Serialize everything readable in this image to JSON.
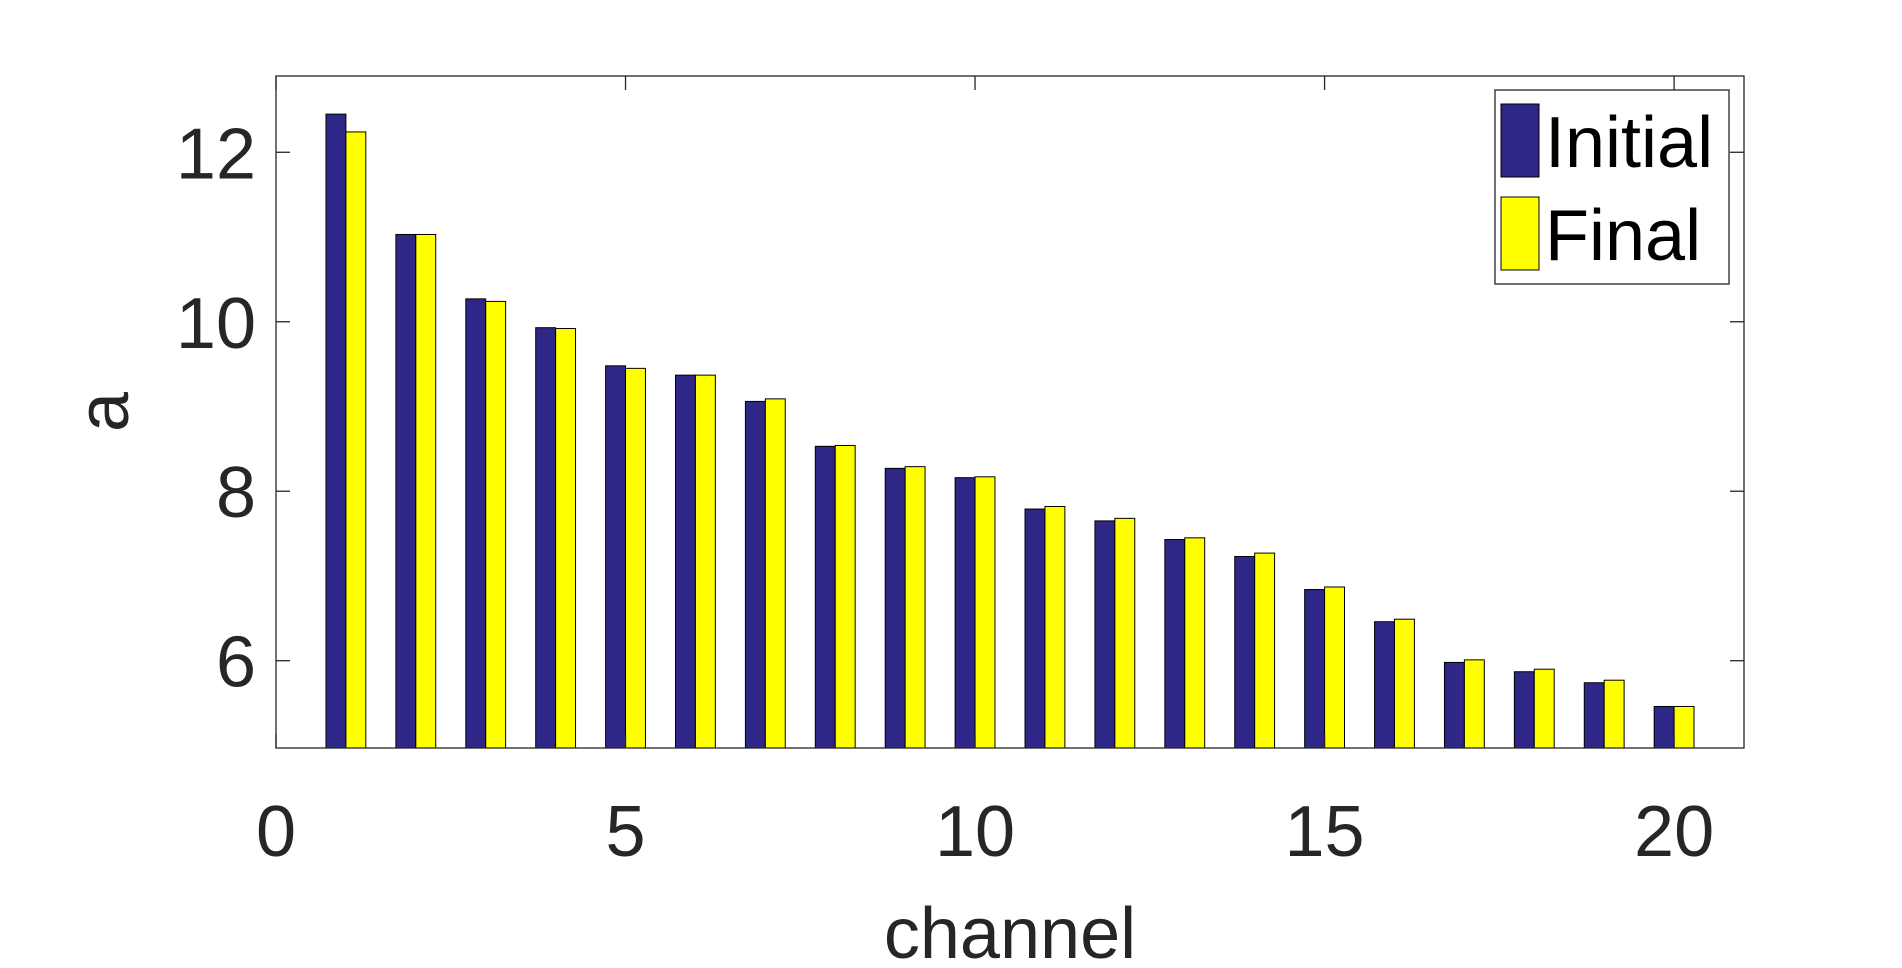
{
  "chart_data": {
    "type": "bar",
    "x": [
      1,
      2,
      3,
      4,
      5,
      6,
      7,
      8,
      9,
      10,
      11,
      12,
      13,
      14,
      15,
      16,
      17,
      18,
      19,
      20
    ],
    "series": [
      {
        "name": "Initial",
        "color": "#2E2787",
        "values": [
          12.45,
          11.03,
          10.27,
          9.93,
          9.48,
          9.37,
          9.06,
          8.53,
          8.27,
          8.16,
          7.79,
          7.65,
          7.43,
          7.23,
          6.84,
          6.46,
          5.98,
          5.87,
          5.74,
          5.46
        ]
      },
      {
        "name": "Final",
        "color": "#FFFF00",
        "values": [
          12.24,
          11.03,
          10.24,
          9.92,
          9.45,
          9.37,
          9.09,
          8.54,
          8.29,
          8.17,
          7.82,
          7.68,
          7.45,
          7.27,
          6.87,
          6.49,
          6.01,
          5.9,
          5.77,
          5.46
        ]
      }
    ],
    "title": "",
    "xlabel": "channel",
    "ylabel": "a",
    "xlim": [
      0,
      21
    ],
    "ylim": [
      4.97,
      12.9
    ],
    "xticks": [
      0,
      5,
      10,
      15,
      20
    ],
    "yticks": [
      6,
      8,
      10,
      12
    ],
    "grid": false,
    "legend_position": "top-right"
  }
}
